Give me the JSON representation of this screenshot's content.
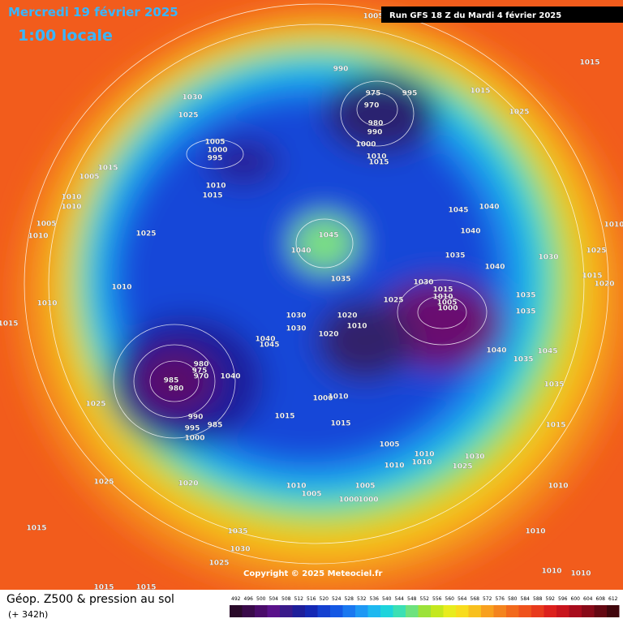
{
  "header": {
    "date": "Mercredi 19 février 2025",
    "time": "1:00 locale",
    "run": "Run GFS 18 Z du Mardi 4 février 2025"
  },
  "copyright": "Copyright © 2025 Meteociel.fr",
  "footer": {
    "title": "Géop. Z500 & pression au sol",
    "lead": "(+ 342h)"
  },
  "legend": {
    "values": [
      492,
      496,
      500,
      504,
      508,
      512,
      516,
      520,
      524,
      528,
      532,
      536,
      540,
      544,
      548,
      552,
      556,
      560,
      564,
      568,
      572,
      576,
      580,
      584,
      588,
      592,
      596,
      600,
      604,
      608,
      612
    ]
  },
  "pressure_labels": [
    1005,
    990,
    975,
    970,
    995,
    1015,
    1015,
    1025,
    980,
    990,
    1000,
    1010,
    1015,
    1030,
    1025,
    1005,
    1000,
    995,
    1015,
    1005,
    1010,
    1015,
    1010,
    1010,
    1005,
    1010,
    1025,
    1010,
    1010,
    1015,
    1045,
    1040,
    1035,
    1045,
    1040,
    1040,
    1035,
    1040,
    1030,
    1025,
    1030,
    1015,
    1010,
    1005,
    1000,
    1025,
    1020,
    1010,
    1030,
    1030,
    1020,
    1040,
    1045,
    1040,
    1035,
    1035,
    1035,
    1045,
    1035,
    980,
    975,
    970,
    985,
    980,
    1040,
    990,
    995,
    1000,
    985,
    1025,
    1000,
    1010,
    1015,
    1015,
    1005,
    1010,
    1010,
    1010,
    1025,
    1030,
    1025,
    1020,
    1010,
    1005,
    1005,
    1000,
    1000,
    1035,
    1030,
    1025,
    1015,
    1015,
    1015,
    1015,
    1010,
    1010,
    1010,
    1010,
    1020,
    1015,
    1010
  ]
}
